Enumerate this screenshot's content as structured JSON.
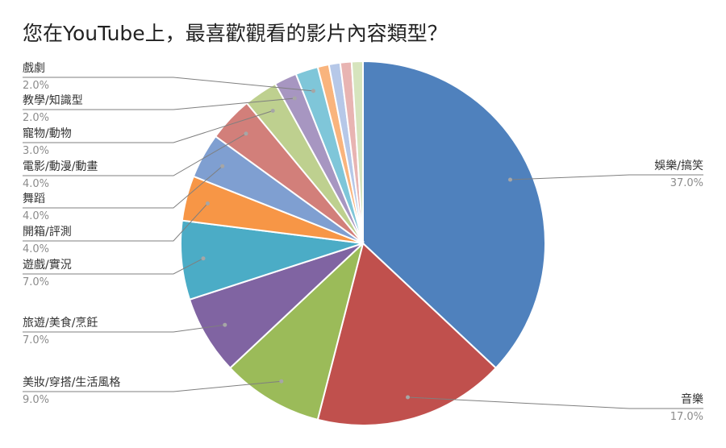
{
  "chart_data": {
    "type": "pie",
    "title": "您在YouTube上，最喜歡觀看的影片內容類型？",
    "slices": [
      {
        "label": "娛樂/搞笑",
        "value": 37.0,
        "pct_text": "37.0%",
        "color": "#4f81bd"
      },
      {
        "label": "音樂",
        "value": 17.0,
        "pct_text": "17.0%",
        "color": "#c0504d"
      },
      {
        "label": "美妝/穿搭/生活風格",
        "value": 9.0,
        "pct_text": "9.0%",
        "color": "#9bbb59"
      },
      {
        "label": "旅遊/美食/烹飪",
        "value": 7.0,
        "pct_text": "7.0%",
        "color": "#8064a2"
      },
      {
        "label": "遊戲/實況",
        "value": 7.0,
        "pct_text": "7.0%",
        "color": "#4bacc6"
      },
      {
        "label": "開箱/評測",
        "value": 4.0,
        "pct_text": "4.0%",
        "color": "#f79646"
      },
      {
        "label": "舞蹈",
        "value": 4.0,
        "pct_text": "4.0%",
        "color": "#7f9fd1"
      },
      {
        "label": "電影/動漫/動畫",
        "value": 4.0,
        "pct_text": "4.0%",
        "color": "#d27f7a"
      },
      {
        "label": "寵物/動物",
        "value": 3.0,
        "pct_text": "3.0%",
        "color": "#bed08f"
      },
      {
        "label": "教學/知識型",
        "value": 2.0,
        "pct_text": "2.0%",
        "color": "#a796c1"
      },
      {
        "label": "戲劇",
        "value": 2.0,
        "pct_text": "2.0%",
        "color": "#7fc6d9"
      },
      {
        "label": "",
        "value": 1.0,
        "pct_text": "",
        "color": "#f9b47d"
      },
      {
        "label": "",
        "value": 1.0,
        "pct_text": "",
        "color": "#b6c8e8"
      },
      {
        "label": "",
        "value": 1.0,
        "pct_text": "",
        "color": "#e8b4b2"
      },
      {
        "label": "",
        "value": 1.0,
        "pct_text": "",
        "color": "#d6e4bd"
      }
    ]
  }
}
